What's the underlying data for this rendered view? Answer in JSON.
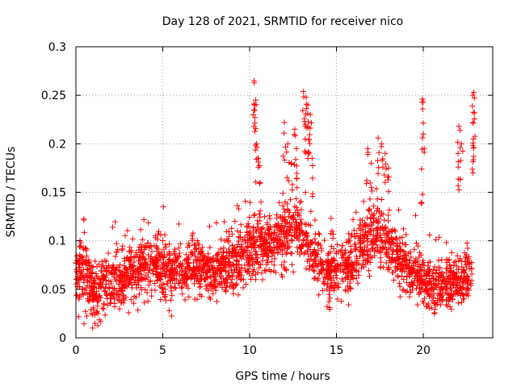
{
  "chart_data": {
    "type": "scatter",
    "title": "Day 128 of 2021, SRMTID for receiver nico",
    "xlabel": "GPS time / hours",
    "ylabel": "SRMTID / TECUs",
    "xlim": [
      0,
      24
    ],
    "ylim": [
      0,
      0.3
    ],
    "x_ticks": [
      0,
      5,
      10,
      15,
      20
    ],
    "x_tick_labels": [
      "0",
      "5",
      "10",
      "15",
      "20"
    ],
    "y_ticks": [
      0,
      0.05,
      0.1,
      0.15,
      0.2,
      0.25,
      0.3
    ],
    "y_tick_labels": [
      "0",
      "0.05",
      "0.1",
      "0.15",
      "0.2",
      "0.25",
      "0.3"
    ],
    "grid": true,
    "marker": "plus",
    "color": "#ff0000",
    "series_profile": [
      {
        "x": 0.0,
        "center": 0.065,
        "spread": 0.03
      },
      {
        "x": 0.5,
        "center": 0.07,
        "spread": 0.035
      },
      {
        "x": 1.0,
        "center": 0.045,
        "spread": 0.025
      },
      {
        "x": 1.5,
        "center": 0.05,
        "spread": 0.03
      },
      {
        "x": 2.0,
        "center": 0.055,
        "spread": 0.025
      },
      {
        "x": 3.0,
        "center": 0.062,
        "spread": 0.025
      },
      {
        "x": 4.0,
        "center": 0.08,
        "spread": 0.03
      },
      {
        "x": 5.0,
        "center": 0.072,
        "spread": 0.028
      },
      {
        "x": 6.0,
        "center": 0.065,
        "spread": 0.025
      },
      {
        "x": 7.0,
        "center": 0.075,
        "spread": 0.028
      },
      {
        "x": 8.0,
        "center": 0.065,
        "spread": 0.022
      },
      {
        "x": 9.0,
        "center": 0.078,
        "spread": 0.025
      },
      {
        "x": 10.0,
        "center": 0.09,
        "spread": 0.028
      },
      {
        "x": 11.0,
        "center": 0.095,
        "spread": 0.025
      },
      {
        "x": 12.0,
        "center": 0.105,
        "spread": 0.03
      },
      {
        "x": 13.0,
        "center": 0.11,
        "spread": 0.03
      },
      {
        "x": 14.0,
        "center": 0.072,
        "spread": 0.025
      },
      {
        "x": 15.0,
        "center": 0.068,
        "spread": 0.025
      },
      {
        "x": 16.0,
        "center": 0.08,
        "spread": 0.03
      },
      {
        "x": 17.0,
        "center": 0.112,
        "spread": 0.03
      },
      {
        "x": 18.0,
        "center": 0.095,
        "spread": 0.03
      },
      {
        "x": 19.0,
        "center": 0.072,
        "spread": 0.025
      },
      {
        "x": 20.0,
        "center": 0.058,
        "spread": 0.022
      },
      {
        "x": 21.0,
        "center": 0.052,
        "spread": 0.02
      },
      {
        "x": 22.0,
        "center": 0.058,
        "spread": 0.022
      },
      {
        "x": 22.8,
        "center": 0.07,
        "spread": 0.025
      }
    ],
    "spikes": [
      {
        "x": 10.25,
        "y": 0.265
      },
      {
        "x": 10.35,
        "y": 0.245
      },
      {
        "x": 10.3,
        "y": 0.235
      },
      {
        "x": 10.4,
        "y": 0.2
      },
      {
        "x": 10.5,
        "y": 0.185
      },
      {
        "x": 10.6,
        "y": 0.16
      },
      {
        "x": 12.0,
        "y": 0.222
      },
      {
        "x": 12.2,
        "y": 0.2
      },
      {
        "x": 12.4,
        "y": 0.18
      },
      {
        "x": 12.6,
        "y": 0.215
      },
      {
        "x": 12.7,
        "y": 0.195
      },
      {
        "x": 13.1,
        "y": 0.254
      },
      {
        "x": 13.25,
        "y": 0.248
      },
      {
        "x": 13.35,
        "y": 0.24
      },
      {
        "x": 13.5,
        "y": 0.23
      },
      {
        "x": 13.2,
        "y": 0.22
      },
      {
        "x": 13.4,
        "y": 0.205
      },
      {
        "x": 13.6,
        "y": 0.185
      },
      {
        "x": 16.8,
        "y": 0.195
      },
      {
        "x": 17.0,
        "y": 0.18
      },
      {
        "x": 17.4,
        "y": 0.206
      },
      {
        "x": 17.6,
        "y": 0.2
      },
      {
        "x": 17.8,
        "y": 0.19
      },
      {
        "x": 18.0,
        "y": 0.175
      },
      {
        "x": 19.95,
        "y": 0.246
      },
      {
        "x": 19.9,
        "y": 0.174
      },
      {
        "x": 20.0,
        "y": 0.21
      },
      {
        "x": 22.05,
        "y": 0.218
      },
      {
        "x": 22.2,
        "y": 0.2
      },
      {
        "x": 22.0,
        "y": 0.19
      },
      {
        "x": 22.9,
        "y": 0.253
      },
      {
        "x": 22.95,
        "y": 0.232
      },
      {
        "x": 22.85,
        "y": 0.222
      },
      {
        "x": 22.9,
        "y": 0.187
      }
    ],
    "point_count": 2600
  }
}
